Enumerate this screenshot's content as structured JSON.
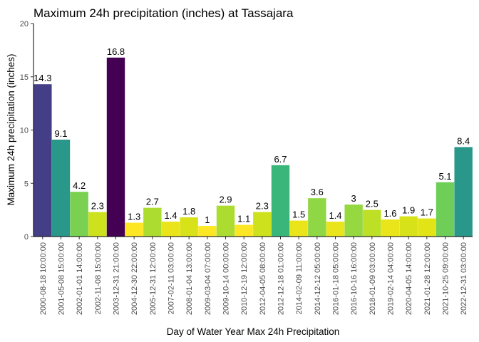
{
  "chart_data": {
    "type": "bar",
    "title": "Maximum 24h precipitation (inches) at Tassajara",
    "xlabel": "Day of Water Year Max 24h Precipitation",
    "ylabel": "Maximum 24h precipitation (inches)",
    "ylim": [
      0,
      20
    ],
    "yticks": [
      0,
      5,
      10,
      15,
      20
    ],
    "grid": false,
    "legend": "none",
    "categories": [
      "2000-08-18 10:00:00",
      "2001-05-08 15:00:00",
      "2002-01-01 14:00:00",
      "2002-11-08 15:00:00",
      "2003-12-31 21:00:00",
      "2004-12-30 22:00:00",
      "2005-12-31 12:00:00",
      "2007-02-11 03:00:00",
      "2008-01-04 13:00:00",
      "2009-03-04 07:00:00",
      "2009-10-14 00:00:00",
      "2010-12-19 12:00:00",
      "2012-04-05 08:00:00",
      "2012-12-18 01:00:00",
      "2014-02-09 11:00:00",
      "2014-12-12 05:00:00",
      "2016-01-18 05:00:00",
      "2016-10-16 16:00:00",
      "2018-01-09 03:00:00",
      "2019-02-14 04:00:00",
      "2020-04-05 14:00:00",
      "2021-01-28 12:00:00",
      "2021-10-25 09:00:00",
      "2022-12-31 03:00:00"
    ],
    "values": [
      14.3,
      9.1,
      4.2,
      2.3,
      16.8,
      1.3,
      2.7,
      1.4,
      1.8,
      1,
      2.9,
      1.1,
      2.3,
      6.7,
      1.5,
      3.6,
      1.4,
      3,
      2.5,
      1.6,
      1.9,
      1.7,
      5.1,
      8.4
    ],
    "data_labels": [
      "14.3",
      "9.1",
      "4.2",
      "2.3",
      "16.8",
      "1.3",
      "2.7",
      "1.4",
      "1.8",
      "1",
      "2.9",
      "1.1",
      "2.3",
      "6.7",
      "1.5",
      "3.6",
      "1.4",
      "3",
      "2.5",
      "1.6",
      "1.9",
      "1.7",
      "5.1",
      "8.4"
    ],
    "colors": [
      "#433e85",
      "#2a978b",
      "#7ad151",
      "#cde11d",
      "#440154",
      "#fde725",
      "#addc30",
      "#eae51a",
      "#d8e219",
      "#fde725",
      "#addc30",
      "#fde725",
      "#cde11d",
      "#3bb67a",
      "#eae51a",
      "#8fd744",
      "#eae51a",
      "#95d840",
      "#bddf26",
      "#eae51a",
      "#d8e219",
      "#e2e418",
      "#6ece58",
      "#2a978b"
    ]
  }
}
